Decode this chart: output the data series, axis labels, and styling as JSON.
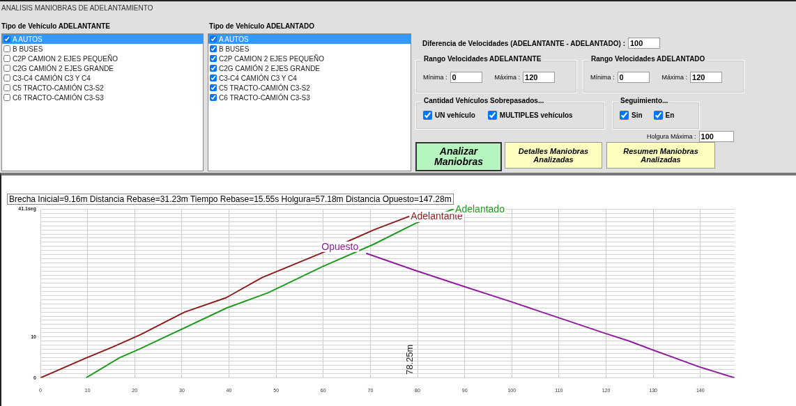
{
  "chart_data": [
    {
      "type": "other",
      "title": "ANALISIS MANIOBRAS DE ADELANTAMIENTO",
      "annotations": [
        "Tipo de Vehículo ADELANTANTE",
        "A AUTOS",
        "B BUSES",
        "C2P CAMION 2 EJES PEQUEÑO",
        "C2G CAMIÓN 2 EJES GRANDE",
        "C3-C4 CAMIÓN C3 Y C4",
        "C5 TRACTO-CAMIÓN C3-S2",
        "C6 TRACTO-CAMIÓN C3-S3",
        "Tipo de Vehículo ADELANTADO",
        "A AUTOS",
        "B BUSES",
        "C2P CAMION 2 EJES PEQUEÑO",
        "C2G CAMIÓN 2 EJES GRANDE",
        "C3-C4 CAMIÓN C3 Y C4",
        "C5 TRACTO-CAMIÓN C3-S2",
        "C6 TRACTO-CAMIÓN C3-S3",
        "Diferencia de Velocidades (ADELANTANTE - ADELANTADO) :",
        "100",
        "Rango Velocidades ADELANTANTE",
        "Mínima :",
        "0",
        "Máxima :",
        "120",
        "Rango Velocidades ADELANTADO",
        "Mínima :",
        "0",
        "Máxima :",
        "120",
        "Cantidad Vehículos Sobrepasados...",
        "UN vehículo",
        "MULTIPLES vehículos",
        "Seguimiento...",
        "Sin",
        "En",
        "Holgura Máxima :",
        "100",
        "Analizar Maniobras",
        "Detalles Maniobras Analizadas",
        "Resumen Maniobras Analizadas"
      ]
    },
    {
      "type": "line",
      "annotations": [
        "Brecha Inicial=9.16m Distancia Rebase=31.23m Tiempo Rebase=15.55s Holgura=57.18m Distancia Opuesto=147.28m",
        "78.25m"
      ],
      "xlim": [
        0,
        147.28
      ],
      "xticks": [
        0,
        10,
        20,
        30,
        40,
        50,
        60,
        70,
        80,
        90,
        100,
        110,
        120,
        130,
        140
      ],
      "ylim": [
        0,
        41.1
      ],
      "yticks": [
        0,
        {
          "value": 1,
          "label": null
        },
        {
          "value": 2,
          "label": null
        },
        {
          "value": 3,
          "label": null
        },
        {
          "value": 4,
          "label": null
        },
        {
          "value": 5,
          "label": null
        },
        {
          "value": 6,
          "label": null
        },
        {
          "value": 7,
          "label": null
        },
        {
          "value": 8,
          "label": null
        },
        {
          "value": 9,
          "label": null
        },
        10,
        {
          "value": 11,
          "label": null
        },
        {
          "value": 12,
          "label": null
        },
        {
          "value": 13,
          "label": null
        },
        {
          "value": 14,
          "label": null
        },
        {
          "value": 15,
          "label": null
        },
        {
          "value": 16,
          "label": null
        },
        {
          "value": 17,
          "label": null
        },
        {
          "value": 18,
          "label": null
        },
        {
          "value": 19,
          "label": null
        },
        {
          "value": 20,
          "label": null
        },
        {
          "value": 21,
          "label": null
        },
        {
          "value": 22,
          "label": null
        },
        {
          "value": 23,
          "label": null
        },
        {
          "value": 24,
          "label": null
        },
        {
          "value": 25,
          "label": null
        },
        {
          "value": 26,
          "label": null
        },
        {
          "value": 27,
          "label": null
        },
        {
          "value": 28,
          "label": null
        },
        {
          "value": 29,
          "label": null
        },
        {
          "value": 30,
          "label": null
        },
        {
          "value": 31,
          "label": null
        },
        {
          "value": 32,
          "label": null
        },
        {
          "value": 33,
          "label": null
        },
        {
          "value": 34,
          "label": null
        },
        {
          "value": 35,
          "label": null
        },
        {
          "value": 36,
          "label": null
        },
        {
          "value": 37,
          "label": null
        },
        {
          "value": 38,
          "label": null
        },
        {
          "value": 39,
          "label": null
        },
        {
          "value": 40,
          "label": null
        },
        {
          "value": 41.1,
          "label": "41.1seg"
        }
      ],
      "grid": true,
      "marker": "none",
      "line_style": "solid",
      "series": [
        {
          "name": "Adelantante",
          "color": "#8b1c1c",
          "x": [
            0,
            9.4,
            15.3,
            21.2,
            30.6,
            39.4,
            47,
            59.9,
            70.7,
            78.25
          ],
          "values": [
            0,
            4.7,
            7.5,
            10.5,
            16,
            19.5,
            24.4,
            30.5,
            36,
            39.3
          ]
        },
        {
          "name": "Adelantado",
          "color": "#1f9a1f",
          "x": [
            9.66,
            16.8,
            21.2,
            39.5,
            48.3,
            59.9,
            70.7,
            79.6,
            87.7
          ],
          "values": [
            0,
            4.9,
            7.1,
            17,
            20.7,
            27.1,
            32.5,
            37.6,
            41.1
          ]
        },
        {
          "name": "Opuesto",
          "color": "#8e1e9a",
          "x": [
            69.1,
            79.6,
            89.9,
            99.9,
            110,
            119.9,
            124.8,
            129.9,
            139.7,
            147.28
          ],
          "values": [
            30.3,
            26.1,
            22.2,
            18.5,
            14.6,
            10.8,
            9,
            6.8,
            2.7,
            0
          ]
        }
      ]
    }
  ]
}
